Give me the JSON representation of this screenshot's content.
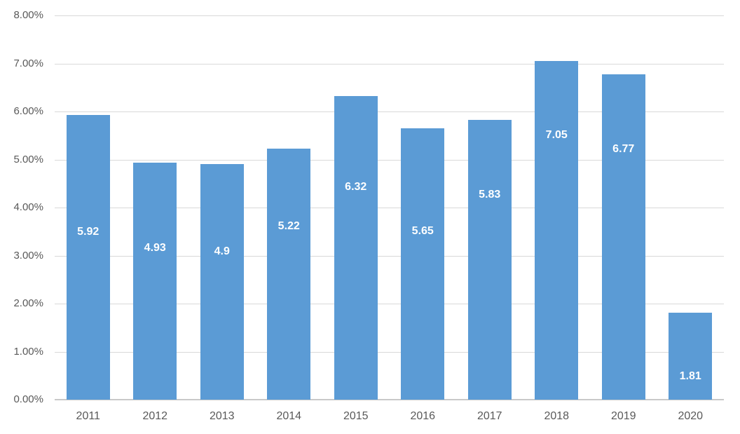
{
  "chart_data": {
    "type": "bar",
    "title": "",
    "xlabel": "",
    "ylabel": "",
    "categories": [
      "2011",
      "2012",
      "2013",
      "2014",
      "2015",
      "2016",
      "2017",
      "2018",
      "2019",
      "2020"
    ],
    "values": [
      5.92,
      4.93,
      4.9,
      5.22,
      6.32,
      5.65,
      5.83,
      7.05,
      6.77,
      1.81
    ],
    "data_labels": [
      "5.92",
      "4.93",
      "4.9",
      "5.22",
      "6.32",
      "5.65",
      "5.83",
      "7.05",
      "6.77",
      "1.81"
    ],
    "ylim": [
      0,
      8
    ],
    "y_tick_step": 1,
    "y_tick_labels": [
      "0.00%",
      "1.00%",
      "2.00%",
      "3.00%",
      "4.00%",
      "5.00%",
      "6.00%",
      "7.00%",
      "8.00%"
    ],
    "grid": true,
    "legend": false,
    "colors": {
      "bar": "#5b9bd5",
      "data_label_text": "#ffffff",
      "axis_text": "#595959",
      "gridline": "#d9d9d9",
      "axis_line": "#c9c9c9",
      "background": "#ffffff"
    }
  }
}
